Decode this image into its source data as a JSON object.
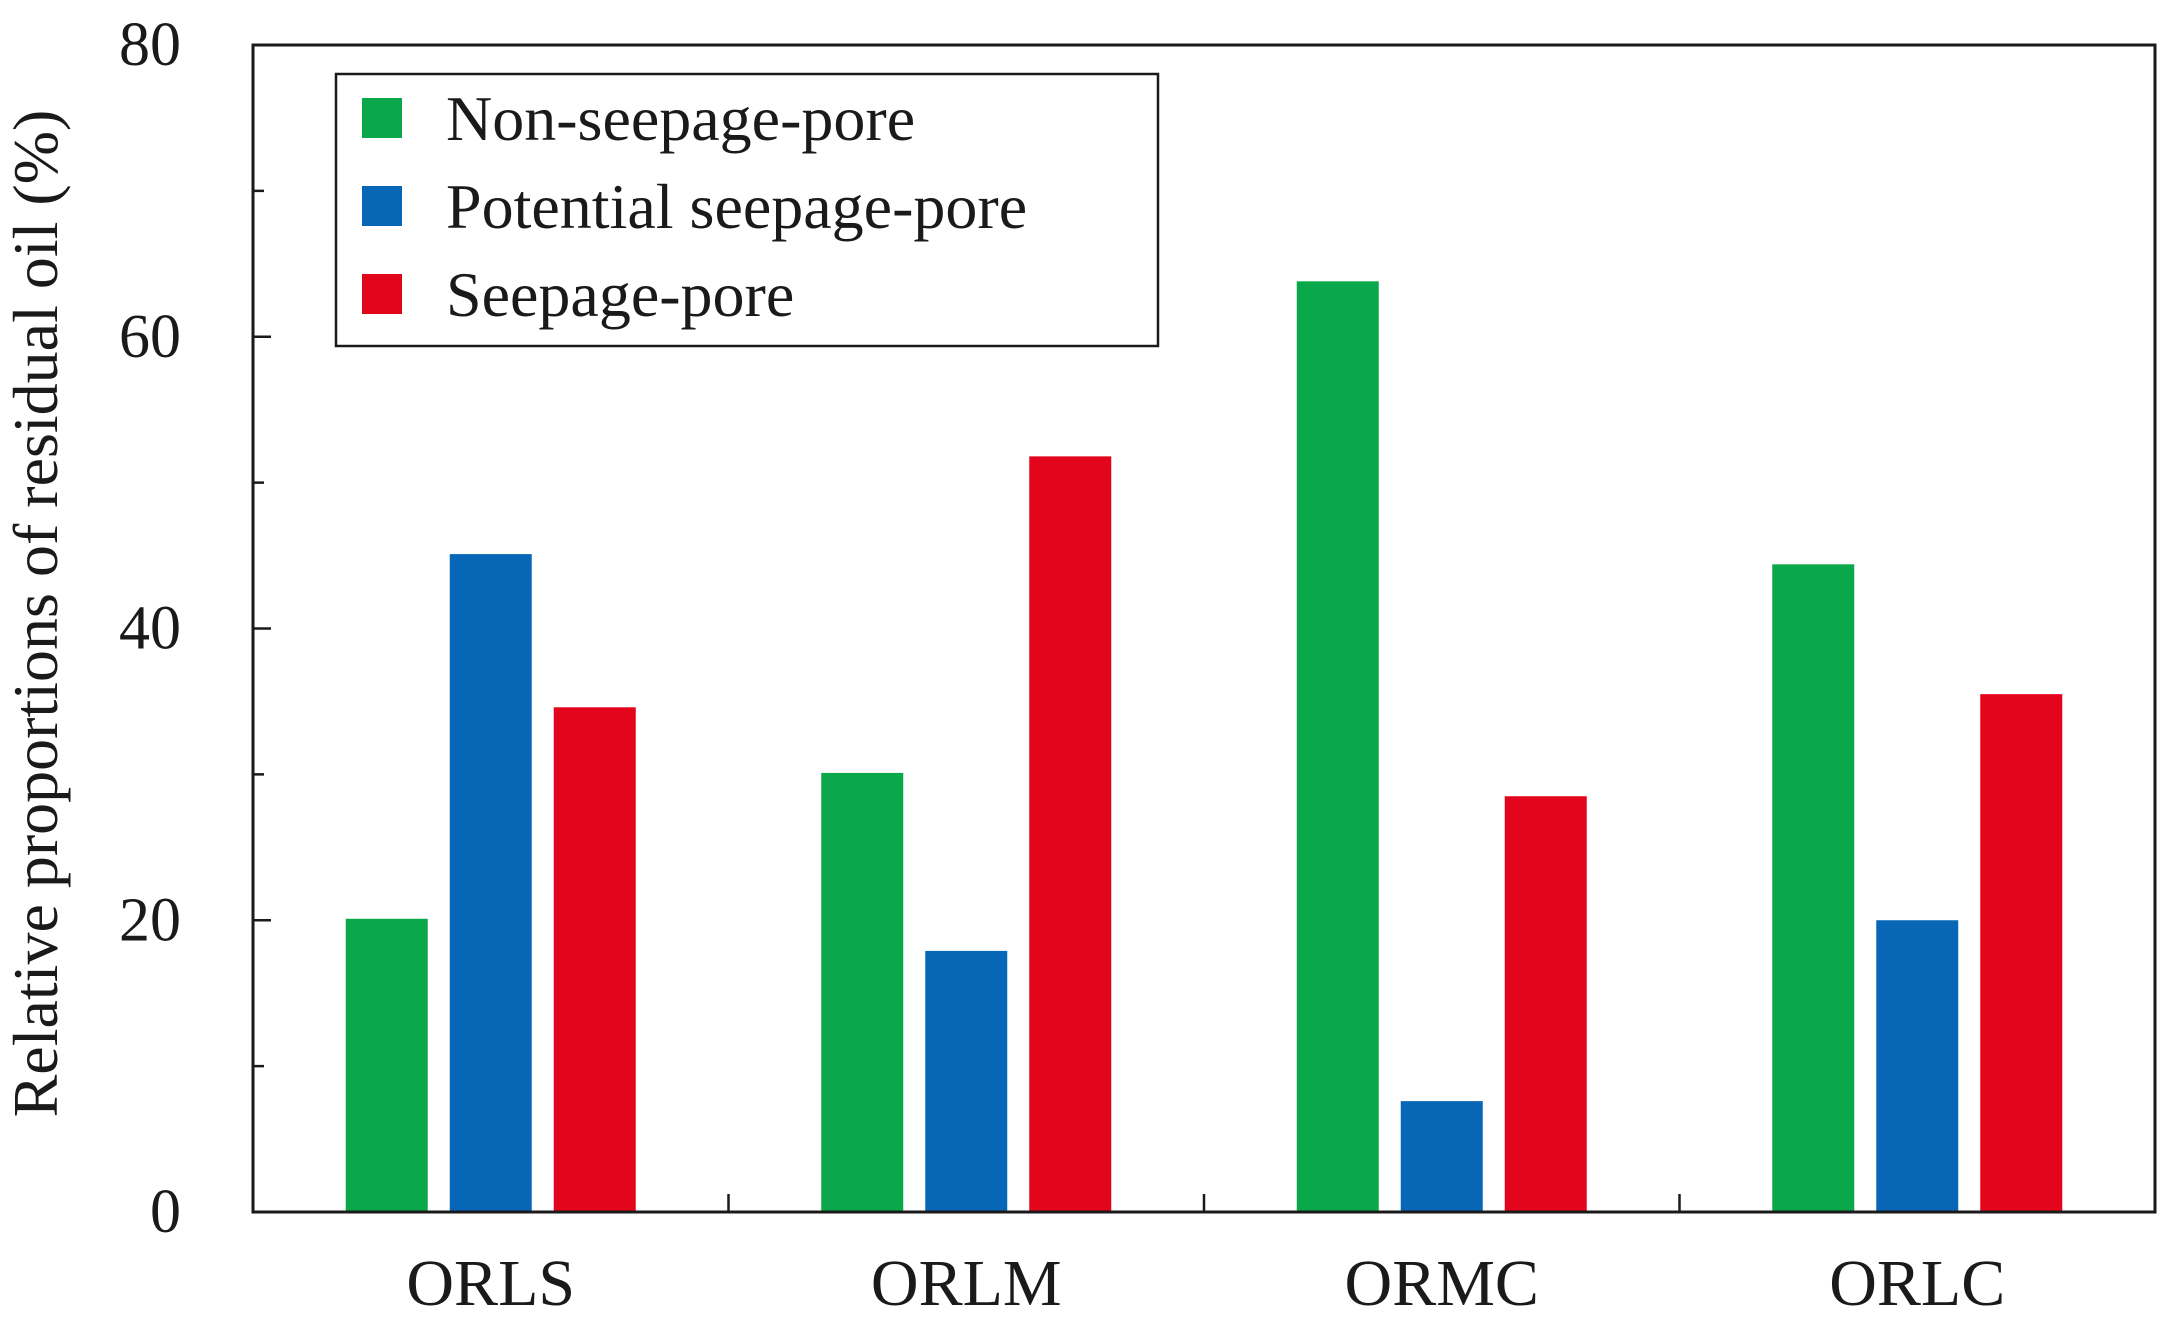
{
  "chart_data": {
    "type": "bar",
    "title": "",
    "xlabel": "",
    "ylabel": "Relative proportions of residual oil (%)",
    "ylim": [
      0,
      80
    ],
    "yticks": [
      0,
      20,
      40,
      60,
      80
    ],
    "yticks_minor": [
      10,
      30,
      50,
      70
    ],
    "categories": [
      "ORLS",
      "ORLM",
      "ORMC",
      "ORLC"
    ],
    "series": [
      {
        "name": "Non-seepage-pore",
        "color": "#0aa84a",
        "values": [
          20.1,
          30.1,
          63.8,
          44.4
        ]
      },
      {
        "name": "Potential seepage-pore",
        "color": "#0766b5",
        "values": [
          45.1,
          17.9,
          7.6,
          20.0
        ]
      },
      {
        "name": "Seepage-pore",
        "color": "#e2051b",
        "values": [
          34.6,
          51.8,
          28.5,
          35.5
        ]
      }
    ],
    "legend_position": "top-left",
    "grid": false
  }
}
